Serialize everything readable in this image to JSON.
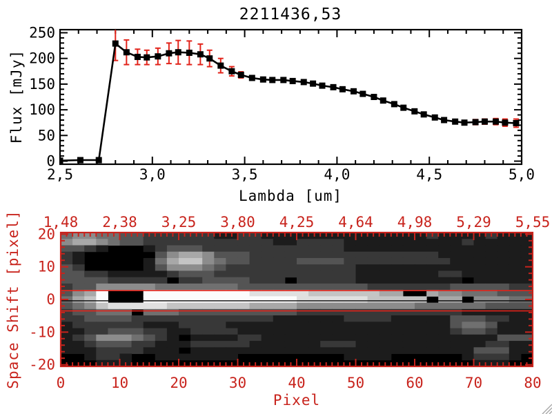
{
  "window": {
    "background": "#ffffff",
    "resize_grip_icon": "diagonal-lines"
  },
  "colors": {
    "frame_black": "#000000",
    "axis_red": "#c8231c",
    "accent_red": "#e2231a",
    "background": "#ffffff"
  },
  "chart_data": [
    {
      "type": "line",
      "name": "spectrum",
      "title": "2211436,53",
      "xlabel": "Lambda [um]",
      "ylabel": "Flux [mJy]",
      "xlim": [
        2.5,
        5.0
      ],
      "ylim": [
        0,
        250
      ],
      "grid": false,
      "marker": "filled-square",
      "line_color": "#000000",
      "error_color": "#e2231a",
      "x_ticks": {
        "values": [
          2.5,
          3.0,
          3.5,
          4.0,
          4.5,
          5.0
        ],
        "labels": [
          "2,5",
          "3,0",
          "3,5",
          "4,0",
          "4,5",
          "5,0"
        ],
        "minor_step": 0.1
      },
      "y_ticks": {
        "values": [
          0,
          50,
          100,
          150,
          200,
          250
        ],
        "labels": [
          "0",
          "50",
          "100",
          "150",
          "200",
          "250"
        ],
        "minor_step": 10
      },
      "lambda": [
        2.5,
        2.61,
        2.71,
        2.8,
        2.86,
        2.92,
        2.97,
        3.03,
        3.09,
        3.14,
        3.2,
        3.26,
        3.31,
        3.37,
        3.43,
        3.48,
        3.54,
        3.6,
        3.65,
        3.71,
        3.76,
        3.82,
        3.87,
        3.92,
        3.98,
        4.03,
        4.09,
        4.14,
        4.2,
        4.25,
        4.31,
        4.36,
        4.42,
        4.47,
        4.53,
        4.58,
        4.64,
        4.69,
        4.75,
        4.8,
        4.86,
        4.91,
        4.97
      ],
      "flux": [
        1,
        2,
        2,
        229,
        212,
        203,
        202,
        204,
        210,
        212,
        211,
        208,
        200,
        186,
        175,
        168,
        162,
        159,
        158,
        158,
        156,
        154,
        151,
        147,
        144,
        140,
        136,
        131,
        125,
        118,
        111,
        104,
        97,
        91,
        85,
        80,
        77,
        75,
        76,
        77,
        77,
        75,
        74
      ],
      "err": [
        3,
        3,
        3,
        33,
        24,
        15,
        14,
        16,
        20,
        23,
        23,
        20,
        16,
        14,
        9,
        6,
        4,
        4,
        3,
        3,
        3,
        3,
        3,
        3,
        3,
        3,
        3,
        3,
        3,
        3,
        3,
        3,
        3,
        3,
        3,
        3,
        4,
        4,
        5,
        5,
        6,
        7,
        8
      ]
    },
    {
      "type": "heatmap",
      "name": "spectral-image",
      "xlabel": "Pixel",
      "ylabel": "Space Shift [pixel]",
      "axis_color": "#c8231c",
      "xlim": [
        0,
        80
      ],
      "ylim": [
        -20.5,
        20.5
      ],
      "x_ticks": {
        "values": [
          0,
          10,
          20,
          30,
          40,
          50,
          60,
          70,
          80
        ],
        "labels": [
          "0",
          "10",
          "20",
          "30",
          "40",
          "50",
          "60",
          "70",
          "80"
        ],
        "minor_step": 1
      },
      "y_ticks": {
        "values": [
          -20,
          -10,
          0,
          10,
          20
        ],
        "labels": [
          "-20",
          "-10",
          "0",
          "10",
          "20"
        ],
        "minor_step": 2
      },
      "top_axis_labels": [
        "1,48",
        "2,38",
        "3,25",
        "3,80",
        "4,25",
        "4,64",
        "4,98",
        "5,29",
        "5,55"
      ],
      "aperture_lines": {
        "color": "#e2231a",
        "upper": 2.7,
        "lower": -3.5
      },
      "center_line": {
        "color": "#000000",
        "y": -0.4
      },
      "grid_encoding": "rows top (+20) to bottom (-20), 40 columns of brightness levels 0(black)-9(white)",
      "grid_rows": [
        "4554433222222112211111111111111211112111",
        "5665433222222222221122221111111111211111",
        "3321000123332222222222221111111111111111",
        "2100000035665333222222222222222211111111",
        "2100000146775433222233332222222221111111",
        "3200000135554322222222222111111111111111",
        "3322111112333222222222222111111122111111",
        "3333222220223333222022222111111111011111",
        "2335555544444443333333333322222223333322",
        "3569000999999999888887777776600655444333",
        "4679000999999999999988888877777066055544",
        "3457888887777777666655555555554444443333",
        "2334440444333333333322222222222222111111",
        "2233332222222222221111112222111113332211",
        "1222222111222211111111111111111113443111",
        "1122333221122221111111111111111112332111",
        "1235554321011112211111111111111111111333",
        "1123332211122222111111222111111111112211",
        "1112222111011111111111111111111111133311",
        "0012210011111110000000001111000000122210",
        "0001110000000000000000000000000000011100"
      ]
    }
  ]
}
